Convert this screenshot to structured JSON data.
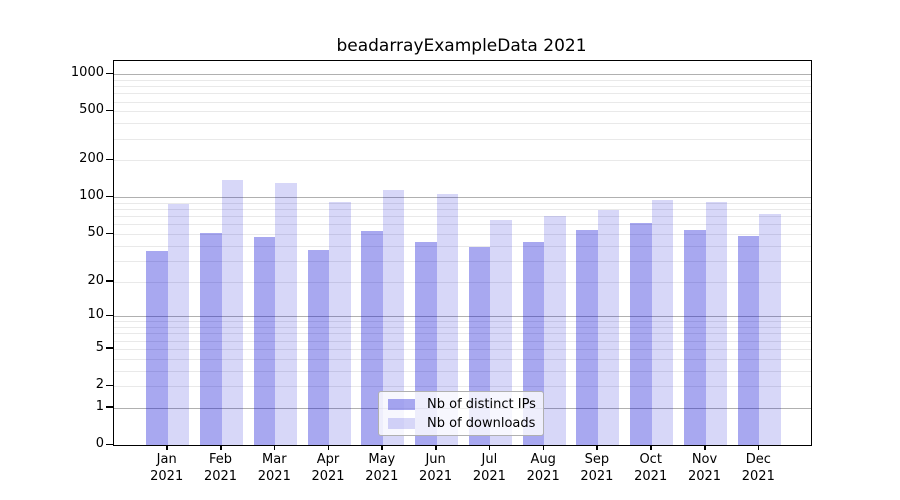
{
  "chart_data": {
    "type": "bar",
    "title": "beadarrayExampleData 2021",
    "categories": [
      "Jan 2021",
      "Feb 2021",
      "Mar 2021",
      "Apr 2021",
      "May 2021",
      "Jun 2021",
      "Jul 2021",
      "Aug 2021",
      "Sep 2021",
      "Oct 2021",
      "Nov 2021",
      "Dec 2021"
    ],
    "series": [
      {
        "name": "Nb of distinct IPs",
        "values": [
          36,
          51,
          47,
          37,
          53,
          43,
          39,
          43,
          54,
          62,
          54,
          48
        ]
      },
      {
        "name": "Nb of downloads",
        "values": [
          88,
          138,
          130,
          92,
          115,
          106,
          65,
          70,
          79,
          95,
          92,
          73
        ]
      }
    ],
    "yscale": "log1p",
    "y_ticks": [
      1000,
      500,
      200,
      100,
      50,
      20,
      10,
      5,
      2,
      1,
      0
    ],
    "ylim": [
      0,
      1280
    ],
    "grid": "horizontal",
    "legend_position": "lower-center",
    "colors": {
      "series_ips": "rgba(0,0,210,0.34)",
      "series_downloads": "rgba(0,0,210,0.155)",
      "major_gridline": "#b0b0b0",
      "minor_gridline": "#e9e9e9",
      "axis": "#000000"
    }
  },
  "legend": {
    "items": [
      {
        "label": "Nb of distinct IPs",
        "color": "rgba(0,0,210,0.34)"
      },
      {
        "label": "Nb of downloads",
        "color": "rgba(0,0,210,0.155)"
      }
    ]
  }
}
